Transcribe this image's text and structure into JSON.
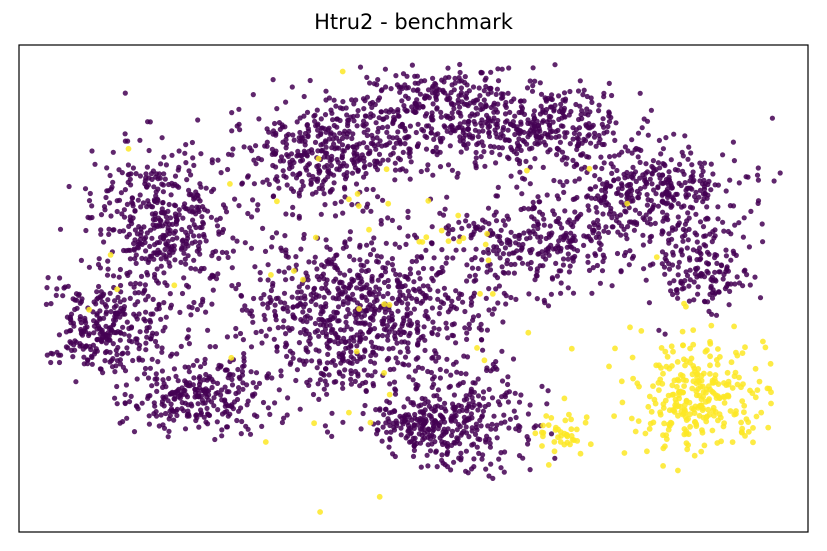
{
  "chart_data": {
    "type": "scatter",
    "title": "Htru2 - benchmark",
    "xlabel": "",
    "ylabel": "",
    "axis_ticks": "none",
    "grid": false,
    "legend": "none",
    "categories": [
      "0",
      "1"
    ],
    "colors": {
      "0": "#440154",
      "1": "#fde725"
    },
    "series": [
      {
        "class": "0",
        "color": "#440154",
        "clusters": [
          {
            "cx": 0.18,
            "cy": 0.36,
            "rx": 0.08,
            "ry": 0.14,
            "n": 420
          },
          {
            "cx": 0.11,
            "cy": 0.58,
            "rx": 0.08,
            "ry": 0.09,
            "n": 300
          },
          {
            "cx": 0.22,
            "cy": 0.72,
            "rx": 0.08,
            "ry": 0.07,
            "n": 260
          },
          {
            "cx": 0.43,
            "cy": 0.55,
            "rx": 0.15,
            "ry": 0.17,
            "n": 900
          },
          {
            "cx": 0.38,
            "cy": 0.22,
            "rx": 0.1,
            "ry": 0.09,
            "n": 360
          },
          {
            "cx": 0.52,
            "cy": 0.14,
            "rx": 0.1,
            "ry": 0.1,
            "n": 340
          },
          {
            "cx": 0.66,
            "cy": 0.16,
            "rx": 0.1,
            "ry": 0.08,
            "n": 330
          },
          {
            "cx": 0.8,
            "cy": 0.3,
            "rx": 0.11,
            "ry": 0.09,
            "n": 380
          },
          {
            "cx": 0.66,
            "cy": 0.4,
            "rx": 0.11,
            "ry": 0.09,
            "n": 300
          },
          {
            "cx": 0.57,
            "cy": 0.78,
            "rx": 0.08,
            "ry": 0.09,
            "n": 250
          },
          {
            "cx": 0.5,
            "cy": 0.78,
            "rx": 0.05,
            "ry": 0.05,
            "n": 120
          },
          {
            "cx": 0.86,
            "cy": 0.46,
            "rx": 0.06,
            "ry": 0.08,
            "n": 160
          }
        ]
      },
      {
        "class": "1",
        "color": "#fde725",
        "clusters": [
          {
            "cx": 0.86,
            "cy": 0.72,
            "rx": 0.08,
            "ry": 0.1,
            "n": 280
          },
          {
            "cx": 0.69,
            "cy": 0.8,
            "rx": 0.03,
            "ry": 0.04,
            "n": 40
          },
          {
            "cx": 0.5,
            "cy": 0.5,
            "rx": 0.4,
            "ry": 0.35,
            "n": 60
          }
        ]
      }
    ]
  }
}
